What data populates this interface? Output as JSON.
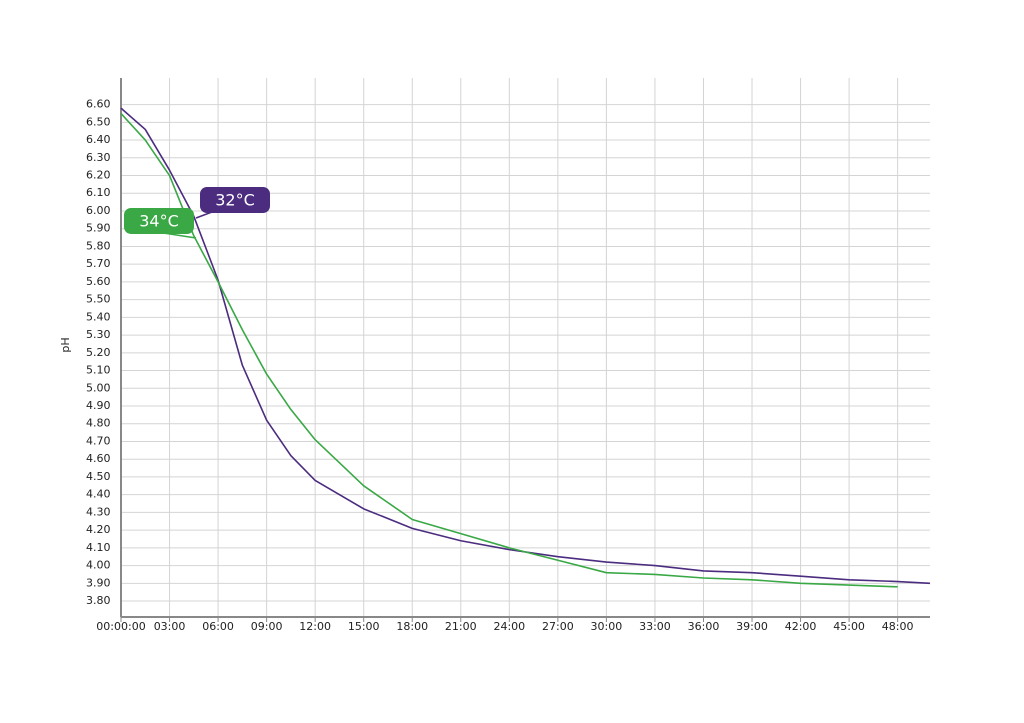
{
  "chart_data": {
    "type": "line",
    "y_label": "pH",
    "x": [
      0,
      1.5,
      3,
      4.5,
      6,
      7.5,
      9,
      10.5,
      12,
      15,
      18,
      21,
      24,
      27,
      30,
      33,
      36,
      39,
      42,
      45,
      48,
      50
    ],
    "series": [
      {
        "name": "32°C",
        "color": "#4b2c7f",
        "values": [
          6.58,
          6.46,
          6.23,
          5.97,
          5.61,
          5.13,
          4.82,
          4.62,
          4.48,
          4.32,
          4.21,
          4.14,
          4.09,
          4.05,
          4.02,
          4.0,
          3.97,
          3.96,
          3.94,
          3.92,
          3.91,
          3.9
        ]
      },
      {
        "name": "34°C",
        "color": "#39a845",
        "values": [
          6.55,
          6.4,
          6.2,
          5.86,
          5.6,
          5.33,
          5.08,
          4.88,
          4.71,
          4.45,
          4.26,
          4.18,
          4.1,
          4.03,
          3.96,
          3.95,
          3.93,
          3.92,
          3.9,
          3.89,
          3.88,
          null
        ]
      }
    ],
    "xlim": [
      0,
      50
    ],
    "xticks": [
      {
        "value": 0,
        "label": "00:00:00"
      },
      {
        "value": 3,
        "label": "03:00"
      },
      {
        "value": 6,
        "label": "06:00"
      },
      {
        "value": 9,
        "label": "09:00"
      },
      {
        "value": 12,
        "label": "12:00"
      },
      {
        "value": 15,
        "label": "15:00"
      },
      {
        "value": 18,
        "label": "18:00"
      },
      {
        "value": 21,
        "label": "21:00"
      },
      {
        "value": 24,
        "label": "24:00"
      },
      {
        "value": 27,
        "label": "27:00"
      },
      {
        "value": 30,
        "label": "30:00"
      },
      {
        "value": 33,
        "label": "33:00"
      },
      {
        "value": 36,
        "label": "36:00"
      },
      {
        "value": 39,
        "label": "39:00"
      },
      {
        "value": 42,
        "label": "42:00"
      },
      {
        "value": 45,
        "label": "45:00"
      },
      {
        "value": 48,
        "label": "48:00"
      }
    ],
    "ylim": [
      3.71,
      6.75
    ],
    "yticks": [
      {
        "value": 3.8,
        "label": "3.80"
      },
      {
        "value": 3.9,
        "label": "3.90"
      },
      {
        "value": 4.0,
        "label": "4.00"
      },
      {
        "value": 4.1,
        "label": "4.10"
      },
      {
        "value": 4.2,
        "label": "4.20"
      },
      {
        "value": 4.3,
        "label": "4.30"
      },
      {
        "value": 4.4,
        "label": "4.40"
      },
      {
        "value": 4.5,
        "label": "4.50"
      },
      {
        "value": 4.6,
        "label": "4.60"
      },
      {
        "value": 4.7,
        "label": "4.70"
      },
      {
        "value": 4.8,
        "label": "4.80"
      },
      {
        "value": 4.9,
        "label": "4.90"
      },
      {
        "value": 5.0,
        "label": "5.00"
      },
      {
        "value": 5.1,
        "label": "5.10"
      },
      {
        "value": 5.2,
        "label": "5.20"
      },
      {
        "value": 5.3,
        "label": "5.30"
      },
      {
        "value": 5.4,
        "label": "5.40"
      },
      {
        "value": 5.5,
        "label": "5.50"
      },
      {
        "value": 5.6,
        "label": "5.60"
      },
      {
        "value": 5.7,
        "label": "5.70"
      },
      {
        "value": 5.8,
        "label": "5.80"
      },
      {
        "value": 5.9,
        "label": "5.90"
      },
      {
        "value": 6.0,
        "label": "6.00"
      },
      {
        "value": 6.1,
        "label": "6.10"
      },
      {
        "value": 6.2,
        "label": "6.20"
      },
      {
        "value": 6.3,
        "label": "6.30"
      },
      {
        "value": 6.4,
        "label": "6.40"
      },
      {
        "value": 6.5,
        "label": "6.50"
      },
      {
        "value": 6.6,
        "label": "6.60"
      }
    ],
    "grid": true
  }
}
